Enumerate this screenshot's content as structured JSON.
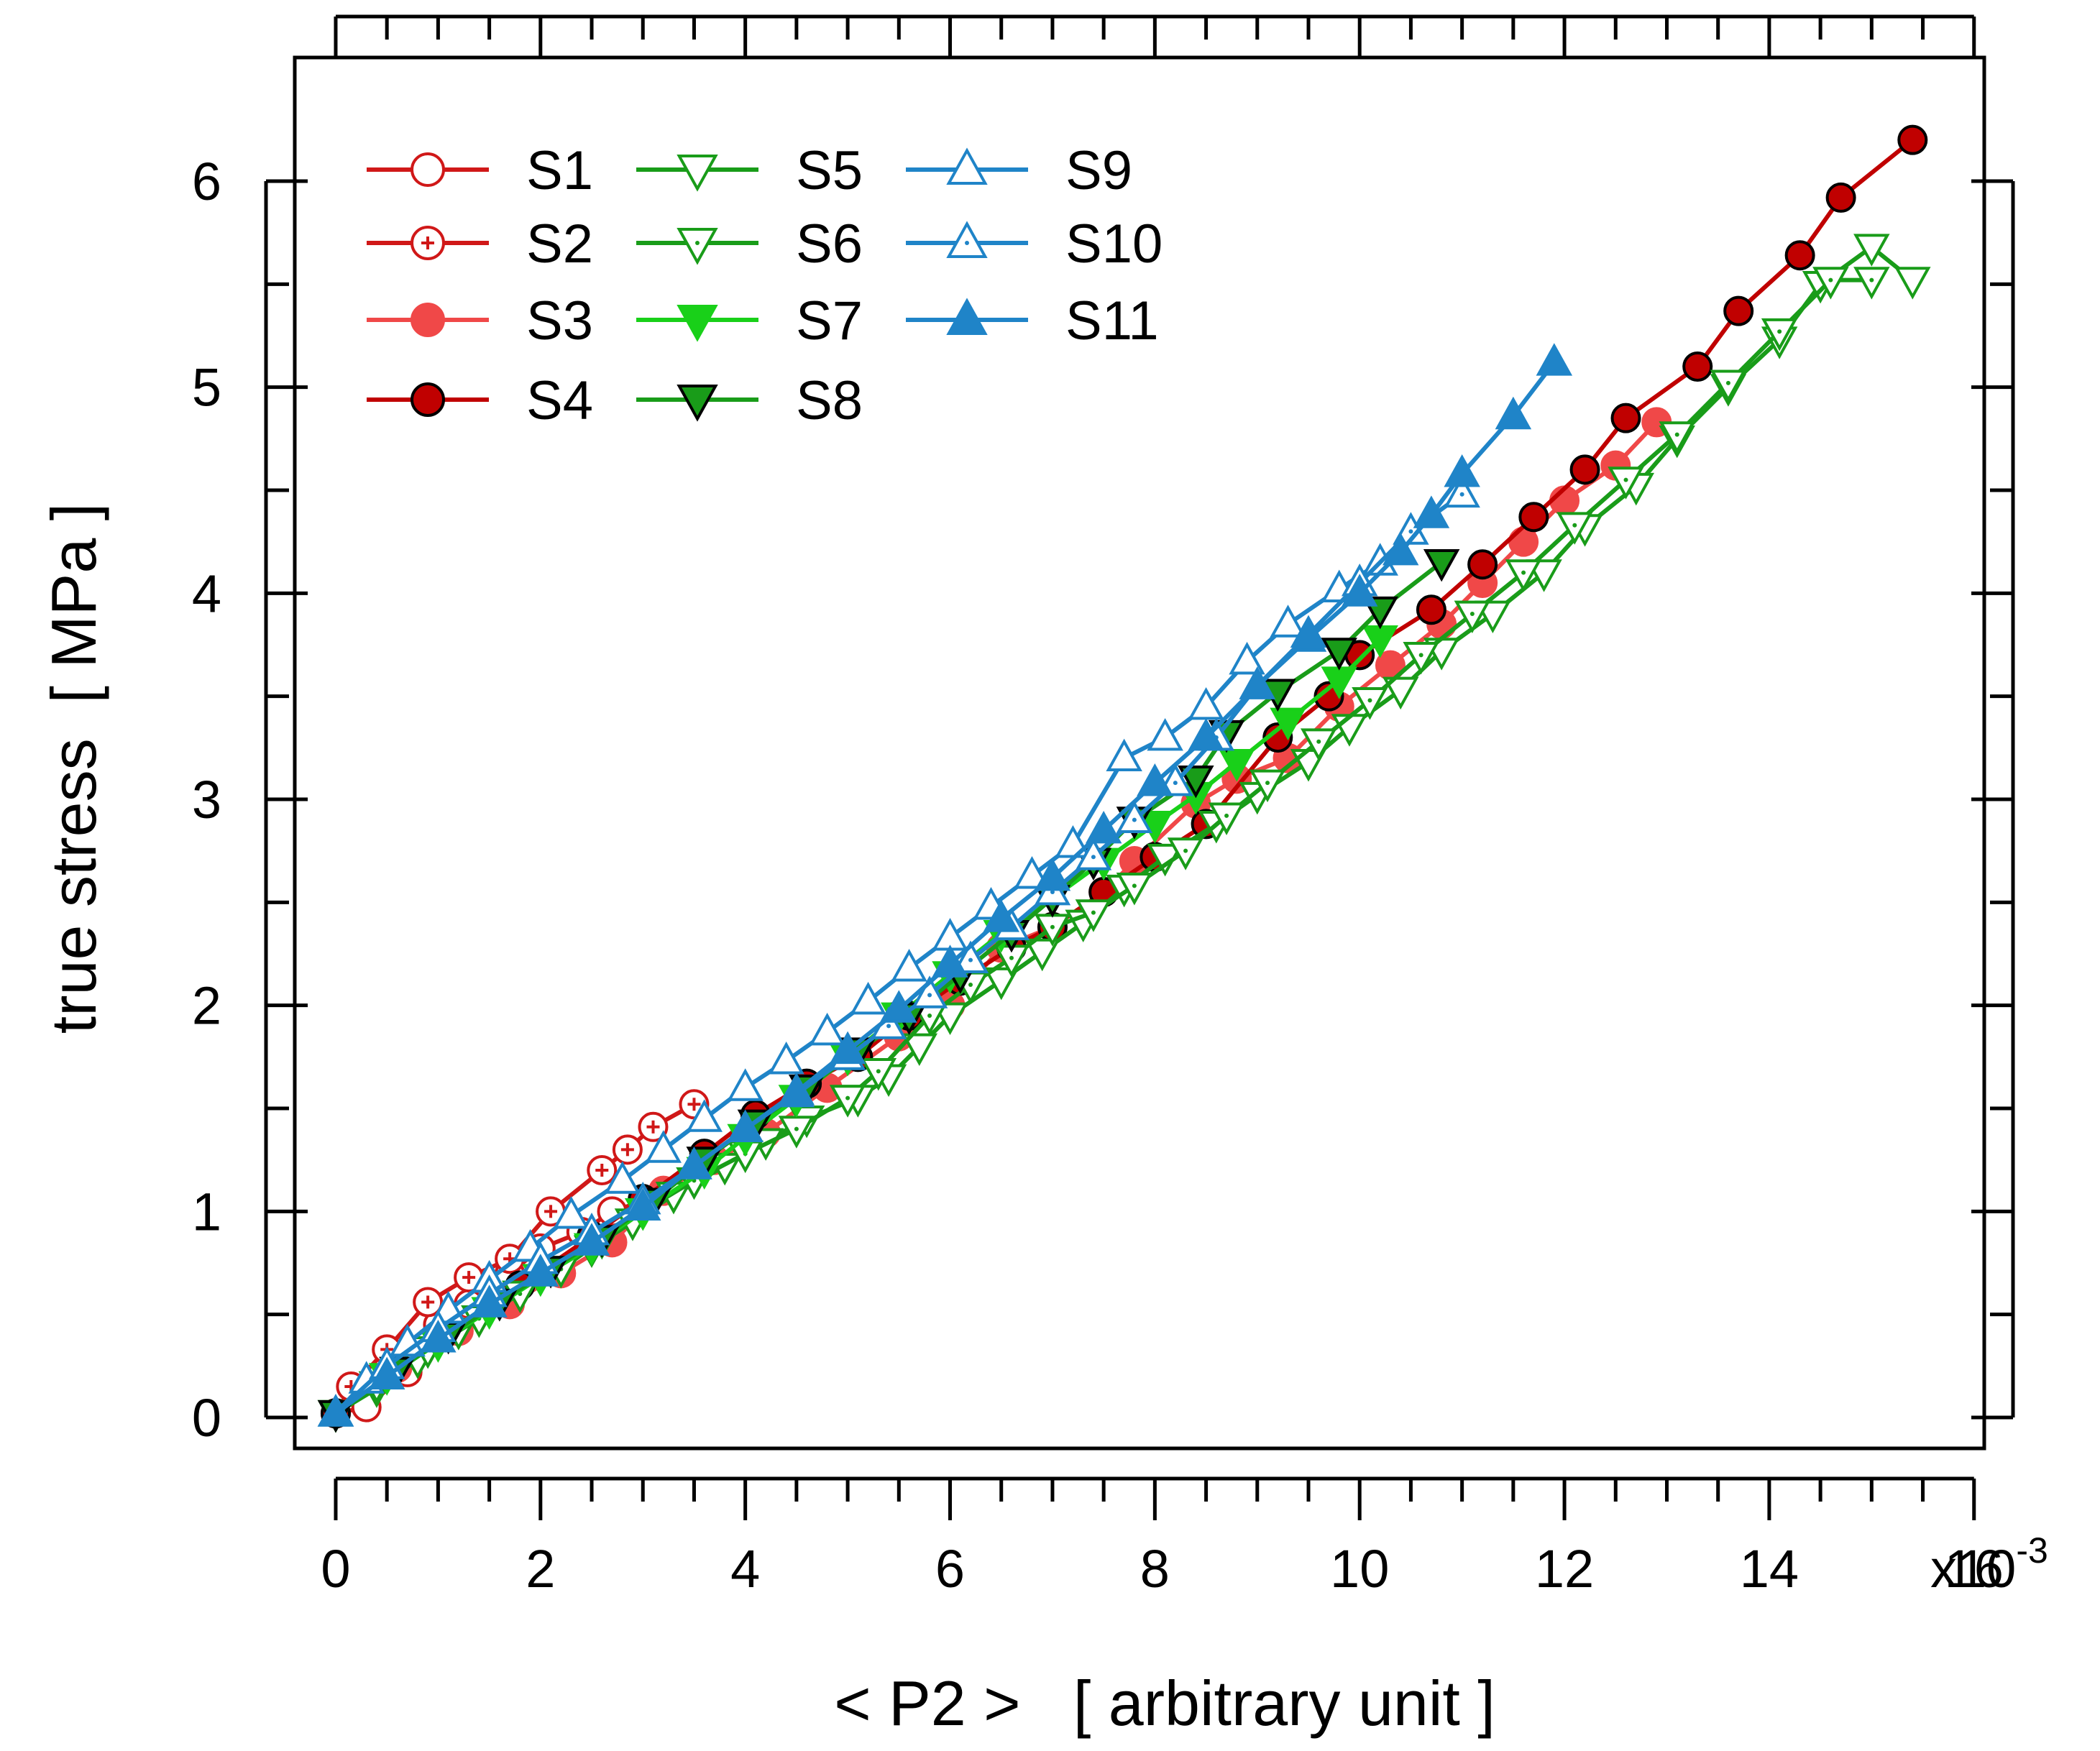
{
  "chart_data": {
    "type": "line",
    "title": "",
    "xlabel": "< P2 >   [ arbitrary unit ]",
    "ylabel": "true stress  [ MPa ]",
    "x_exponent_label": {
      "base": "x10",
      "exp": "-3"
    },
    "xlim": [
      -0.4,
      16.1
    ],
    "ylim": [
      -0.15,
      6.6
    ],
    "x_ticks": [
      0,
      2,
      4,
      6,
      8,
      10,
      12,
      14,
      16
    ],
    "x_tick_labels": [
      "0",
      "2",
      "4",
      "6",
      "8",
      "10",
      "12",
      "14",
      "16"
    ],
    "y_ticks": [
      0,
      1,
      2,
      3,
      4,
      5,
      6
    ],
    "y_tick_labels": [
      "0",
      "1",
      "2",
      "3",
      "4",
      "5",
      "6"
    ],
    "grid": false,
    "legend_position": "top-left",
    "series": [
      {
        "name": "S1",
        "color": "#d01818",
        "marker": "circle",
        "fill": "open",
        "dot": "none",
        "edge": "#d01818",
        "x": [
          0.0,
          0.3,
          0.7,
          1.0,
          1.3,
          1.7,
          2.0,
          2.4,
          2.7,
          3.0
        ],
        "y": [
          0.02,
          0.05,
          0.22,
          0.45,
          0.55,
          0.7,
          0.82,
          0.9,
          1.0,
          1.05
        ]
      },
      {
        "name": "S2",
        "color": "#d01818",
        "marker": "circle",
        "fill": "open",
        "dot": "plus",
        "edge": "#d01818",
        "x": [
          0.0,
          0.15,
          0.5,
          0.9,
          1.3,
          1.7,
          2.1,
          2.6,
          2.85,
          3.1,
          3.5
        ],
        "y": [
          0.02,
          0.15,
          0.33,
          0.56,
          0.68,
          0.77,
          1.0,
          1.2,
          1.3,
          1.41,
          1.52
        ]
      },
      {
        "name": "S3",
        "color": "#f04848",
        "marker": "circle",
        "fill": "solid",
        "dot": "none",
        "edge": "#f04848",
        "x": [
          0.0,
          0.6,
          1.2,
          1.7,
          2.2,
          2.7,
          3.2,
          3.7,
          4.2,
          4.8,
          5.5,
          6.0,
          6.5,
          7.0,
          7.5,
          7.8,
          8.4,
          8.8,
          9.3,
          9.8,
          10.3,
          10.8,
          11.2,
          11.6,
          12.0,
          12.5,
          12.9
        ],
        "y": [
          0.02,
          0.24,
          0.42,
          0.55,
          0.7,
          0.85,
          1.1,
          1.25,
          1.38,
          1.6,
          1.85,
          2.0,
          2.28,
          2.38,
          2.55,
          2.7,
          2.98,
          3.1,
          3.2,
          3.45,
          3.65,
          3.85,
          4.05,
          4.25,
          4.45,
          4.62,
          4.83
        ]
      },
      {
        "name": "S4",
        "color": "#c00000",
        "marker": "circle",
        "fill": "solid",
        "dot": "none",
        "edge": "#000000",
        "x": [
          0.0,
          1.8,
          2.5,
          3.0,
          3.6,
          4.1,
          4.6,
          5.1,
          5.6,
          6.1,
          6.6,
          7.0,
          7.5,
          8.0,
          8.5,
          9.2,
          9.7,
          10.0,
          10.7,
          11.2,
          11.7,
          12.2,
          12.6,
          13.3,
          13.7,
          14.3,
          14.7,
          15.4
        ],
        "y": [
          0.02,
          0.64,
          0.88,
          1.06,
          1.28,
          1.47,
          1.62,
          1.75,
          1.95,
          2.12,
          2.28,
          2.38,
          2.55,
          2.72,
          2.88,
          3.3,
          3.5,
          3.7,
          3.92,
          4.14,
          4.37,
          4.6,
          4.85,
          5.1,
          5.37,
          5.64,
          5.92,
          6.2
        ]
      },
      {
        "name": "S5",
        "color": "#199c19",
        "marker": "triangle-down",
        "fill": "open",
        "dot": "none",
        "edge": "#199c19",
        "x": [
          0.0,
          0.4,
          0.8,
          1.2,
          1.6,
          2.0,
          2.5,
          2.9,
          3.3,
          3.8,
          4.2,
          4.6,
          5.1,
          5.4,
          5.7,
          6.0,
          6.5,
          6.9,
          7.3,
          7.7,
          8.1,
          8.6,
          9.0,
          9.5,
          9.9,
          10.4,
          10.8,
          11.3,
          11.8,
          12.2,
          12.7,
          13.1,
          13.6,
          14.1,
          14.5,
          15.0,
          15.4
        ],
        "y": [
          0.02,
          0.14,
          0.28,
          0.42,
          0.56,
          0.68,
          0.82,
          0.95,
          1.08,
          1.22,
          1.34,
          1.45,
          1.55,
          1.65,
          1.8,
          1.95,
          2.12,
          2.26,
          2.4,
          2.57,
          2.72,
          2.88,
          3.02,
          3.18,
          3.35,
          3.53,
          3.72,
          3.9,
          4.1,
          4.32,
          4.52,
          4.75,
          5.0,
          5.23,
          5.5,
          5.68,
          5.52
        ]
      },
      {
        "name": "S6",
        "color": "#199c19",
        "marker": "triangle-down",
        "fill": "open",
        "dot": "dot",
        "edge": "#199c19",
        "x": [
          0.0,
          0.4,
          0.9,
          1.4,
          1.8,
          2.2,
          2.6,
          3.0,
          3.5,
          4.0,
          4.5,
          5.0,
          5.3,
          5.8,
          6.2,
          6.6,
          7.0,
          7.4,
          7.8,
          8.3,
          8.7,
          9.1,
          9.6,
          10.1,
          10.6,
          11.1,
          11.6,
          12.1,
          12.6,
          13.1,
          13.6,
          14.1,
          14.6,
          15.0
        ],
        "y": [
          0.02,
          0.16,
          0.33,
          0.48,
          0.6,
          0.72,
          0.86,
          1.0,
          1.15,
          1.28,
          1.4,
          1.55,
          1.68,
          1.95,
          2.1,
          2.23,
          2.38,
          2.45,
          2.58,
          2.75,
          2.92,
          3.08,
          3.28,
          3.48,
          3.7,
          3.9,
          4.1,
          4.33,
          4.55,
          4.77,
          5.02,
          5.27,
          5.52,
          5.52
        ]
      },
      {
        "name": "S7",
        "color": "#19d019",
        "marker": "triangle-down",
        "fill": "solid",
        "dot": "none",
        "edge": "#19d019",
        "x": [
          0.0,
          0.5,
          1.0,
          1.5,
          2.0,
          2.5,
          3.0,
          3.6,
          4.0,
          4.5,
          5.0,
          5.5,
          6.0,
          6.5,
          7.0,
          7.5,
          8.0,
          8.4,
          8.8,
          9.3,
          9.8,
          10.2
        ],
        "y": [
          0.02,
          0.2,
          0.36,
          0.52,
          0.68,
          0.83,
          1.0,
          1.2,
          1.36,
          1.55,
          1.75,
          1.95,
          2.15,
          2.35,
          2.52,
          2.7,
          2.88,
          3.02,
          3.18,
          3.38,
          3.58,
          3.78
        ]
      },
      {
        "name": "S8",
        "color": "#199c19",
        "marker": "triangle-down",
        "fill": "solid",
        "dot": "none",
        "edge": "#000000",
        "x": [
          0.0,
          0.6,
          1.1,
          1.6,
          2.1,
          2.6,
          3.1,
          3.6,
          4.1,
          4.6,
          5.1,
          5.6,
          6.1,
          6.6,
          7.0,
          7.4,
          7.8,
          8.4,
          8.7,
          9.2,
          9.8,
          10.2,
          10.8
        ],
        "y": [
          0.02,
          0.23,
          0.4,
          0.56,
          0.72,
          0.87,
          1.05,
          1.25,
          1.43,
          1.6,
          1.78,
          1.95,
          2.15,
          2.35,
          2.52,
          2.7,
          2.9,
          3.1,
          3.32,
          3.52,
          3.72,
          3.92,
          4.15
        ]
      },
      {
        "name": "S9",
        "color": "#1f84c8",
        "marker": "triangle-up",
        "fill": "open",
        "dot": "none",
        "edge": "#1f84c8",
        "x": [
          0.0,
          0.3,
          0.7,
          1.1,
          1.5,
          1.9,
          2.3,
          2.8,
          3.2,
          3.6,
          4.0,
          4.4,
          4.8,
          5.2,
          5.6,
          6.0,
          6.4,
          6.8,
          7.2,
          7.7,
          8.1,
          8.5,
          8.9,
          9.3,
          9.8,
          10.2
        ],
        "y": [
          0.02,
          0.18,
          0.36,
          0.52,
          0.67,
          0.82,
          0.98,
          1.15,
          1.3,
          1.45,
          1.6,
          1.73,
          1.87,
          2.02,
          2.18,
          2.33,
          2.48,
          2.63,
          2.78,
          3.2,
          3.3,
          3.45,
          3.67,
          3.85,
          4.02,
          4.15
        ]
      },
      {
        "name": "S10",
        "color": "#1f84c8",
        "marker": "triangle-up",
        "fill": "open",
        "dot": "dot",
        "edge": "#1f84c8",
        "x": [
          0.0,
          0.5,
          1.0,
          1.5,
          2.0,
          2.5,
          3.0,
          3.5,
          4.0,
          4.5,
          5.0,
          5.4,
          5.8,
          6.2,
          6.6,
          7.0,
          7.4,
          7.8,
          8.2,
          8.6,
          9.0,
          9.5,
          10.0,
          10.5,
          11.0
        ],
        "y": [
          0.02,
          0.25,
          0.43,
          0.6,
          0.76,
          0.9,
          1.05,
          1.22,
          1.4,
          1.57,
          1.75,
          1.9,
          2.05,
          2.22,
          2.38,
          2.55,
          2.72,
          2.9,
          3.08,
          3.3,
          3.55,
          3.8,
          4.05,
          4.3,
          4.48
        ]
      },
      {
        "name": "S11",
        "color": "#1f84c8",
        "marker": "triangle-up",
        "fill": "solid",
        "dot": "none",
        "edge": "#1f84c8",
        "x": [
          0.0,
          0.5,
          1.0,
          1.5,
          2.0,
          2.5,
          3.0,
          3.5,
          4.0,
          4.5,
          5.0,
          5.5,
          6.0,
          6.5,
          7.0,
          7.5,
          8.0,
          8.5,
          9.0,
          9.5,
          10.0,
          10.4,
          10.7,
          11.0,
          11.5,
          11.9
        ],
        "y": [
          0.02,
          0.2,
          0.38,
          0.55,
          0.7,
          0.85,
          1.02,
          1.22,
          1.4,
          1.58,
          1.78,
          1.98,
          2.2,
          2.42,
          2.62,
          2.85,
          3.08,
          3.3,
          3.55,
          3.78,
          4.0,
          4.2,
          4.38,
          4.58,
          4.86,
          5.12
        ]
      }
    ]
  }
}
